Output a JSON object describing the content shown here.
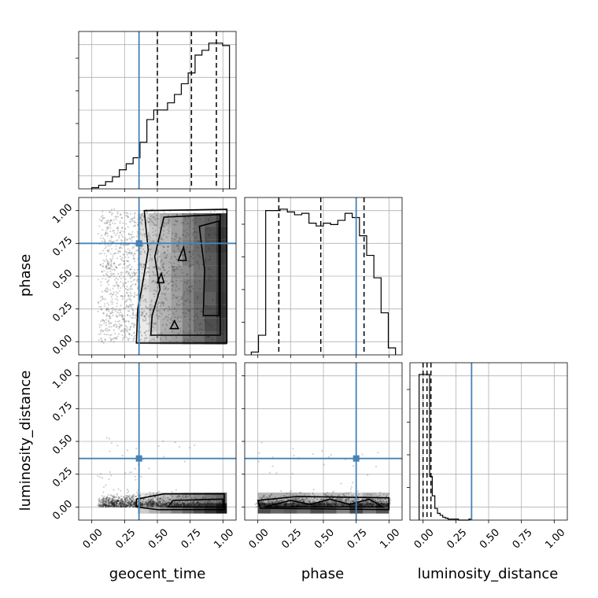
{
  "chart_data": {
    "type": "corner",
    "parameters": [
      "geocent_time",
      "phase",
      "luminosity_distance"
    ],
    "axis_range": [
      -0.1,
      1.1
    ],
    "tick_values": [
      0.0,
      0.25,
      0.5,
      0.75,
      1.0
    ],
    "tick_labels": [
      "0.00",
      "0.25",
      "0.50",
      "0.75",
      "1.00"
    ],
    "truths": {
      "geocent_time": 0.36,
      "phase": 0.75,
      "luminosity_distance": 0.37
    },
    "truth_color": "#4682b4",
    "grid": true,
    "marginals": [
      {
        "parameter": "geocent_time",
        "range": [
          0.0,
          1.05
        ],
        "bins": 20,
        "counts": [
          1,
          3,
          6,
          10,
          16,
          21,
          26,
          39,
          58,
          66,
          66,
          72,
          79,
          88,
          97,
          112,
          116,
          122,
          122,
          120
        ],
        "quantiles": [
          0.5,
          0.76,
          0.95
        ]
      },
      {
        "parameter": "phase",
        "range": [
          -0.05,
          1.05
        ],
        "bins": 20,
        "counts": [
          2,
          14,
          103,
          103,
          104,
          102,
          100,
          101,
          94,
          92,
          94,
          93,
          96,
          101,
          98,
          85,
          71,
          55,
          30,
          5
        ],
        "quantiles": [
          0.16,
          0.48,
          0.81
        ]
      },
      {
        "parameter": "luminosity_distance",
        "range": [
          -0.03,
          0.37
        ],
        "bins": 20,
        "counts": [
          150,
          150,
          150,
          150,
          45,
          25,
          12,
          7,
          5,
          3,
          2,
          1,
          1,
          1,
          1,
          0,
          0,
          0,
          0,
          1
        ],
        "quantiles": [
          0.0,
          0.03,
          0.06
        ]
      }
    ]
  }
}
